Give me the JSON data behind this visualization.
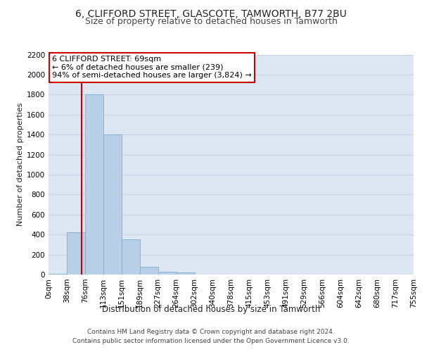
{
  "title1": "6, CLIFFORD STREET, GLASCOTE, TAMWORTH, B77 2BU",
  "title2": "Size of property relative to detached houses in Tamworth",
  "xlabel": "Distribution of detached houses by size in Tamworth",
  "ylabel": "Number of detached properties",
  "bin_labels": [
    "0sqm",
    "38sqm",
    "76sqm",
    "113sqm",
    "151sqm",
    "189sqm",
    "227sqm",
    "264sqm",
    "302sqm",
    "340sqm",
    "378sqm",
    "415sqm",
    "453sqm",
    "491sqm",
    "529sqm",
    "566sqm",
    "604sqm",
    "642sqm",
    "680sqm",
    "717sqm",
    "755sqm"
  ],
  "bar_values": [
    10,
    420,
    1800,
    1400,
    350,
    75,
    25,
    20,
    0,
    0,
    0,
    0,
    0,
    0,
    0,
    0,
    0,
    0,
    0,
    0
  ],
  "bar_color": "#b8cfe8",
  "bar_edgecolor": "#7aadd4",
  "grid_color": "#c8d4e8",
  "bg_color": "#dde6f3",
  "red_line_x": 1.82,
  "annotation_line1": "6 CLIFFORD STREET: 69sqm",
  "annotation_line2": "← 6% of detached houses are smaller (239)",
  "annotation_line3": "94% of semi-detached houses are larger (3,824) →",
  "annotation_box_color": "#ffffff",
  "annotation_box_edgecolor": "#cc0000",
  "ylim": [
    0,
    2200
  ],
  "yticks": [
    0,
    200,
    400,
    600,
    800,
    1000,
    1200,
    1400,
    1600,
    1800,
    2000,
    2200
  ],
  "footer": "Contains HM Land Registry data © Crown copyright and database right 2024.\nContains public sector information licensed under the Open Government Licence v3.0.",
  "title1_fontsize": 10,
  "title2_fontsize": 9,
  "xlabel_fontsize": 8.5,
  "ylabel_fontsize": 8,
  "tick_fontsize": 7.5,
  "annotation_fontsize": 8,
  "footer_fontsize": 6.5
}
